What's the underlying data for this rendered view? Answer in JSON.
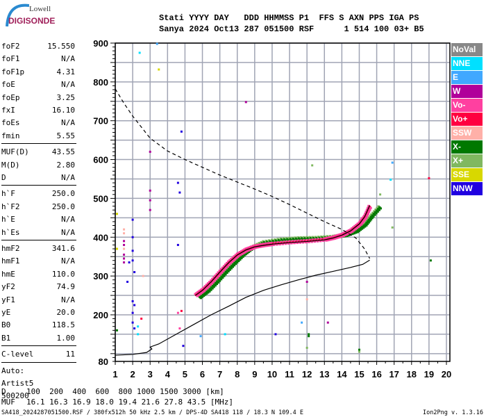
{
  "logo": {
    "line1": "Lowell",
    "line2": "DIGISONDE"
  },
  "header": {
    "line1": "Stati YYYY DAY   DDD HHMMSS P1  FFS S AXN PPS IGA PS",
    "line2": "Sanya 2024 Oct13 287 051500 RSF      1 514 100 03+ B5"
  },
  "params": [
    [
      [
        "foF2",
        "15.550"
      ],
      [
        "foF1",
        "N/A"
      ],
      [
        "foF1p",
        "4.31"
      ],
      [
        "foE",
        "N/A"
      ],
      [
        "foEp",
        "3.25"
      ],
      [
        "fxI",
        "16.10"
      ],
      [
        "foEs",
        "N/A"
      ],
      [
        "fmin",
        "5.55"
      ]
    ],
    [
      [
        "MUF(D)",
        "43.55"
      ],
      [
        "M(D)",
        "2.80"
      ],
      [
        "D",
        "N/A"
      ]
    ],
    [
      [
        "h`F",
        "250.0"
      ],
      [
        "h`F2",
        "250.0"
      ],
      [
        "h`E",
        "N/A"
      ],
      [
        "h`Es",
        "N/A"
      ]
    ],
    [
      [
        "hmF2",
        "341.6"
      ],
      [
        "hmF1",
        "N/A"
      ],
      [
        "hmE",
        "110.0"
      ],
      [
        "yF2",
        "74.9"
      ],
      [
        "yF1",
        "N/A"
      ],
      [
        "yE",
        "20.0"
      ],
      [
        "B0",
        "118.5"
      ],
      [
        "B1",
        "1.00"
      ]
    ],
    [
      [
        "C-level",
        "11"
      ]
    ]
  ],
  "auto": [
    "Auto:",
    "Artist5",
    "500200"
  ],
  "muf_table": {
    "d_label": "D",
    "d_values": "100  200  400  600  800 1000 1500 3000 [km]",
    "muf_label": "MUF",
    "muf_values": "16.1 16.3 16.9 18.0 19.4 21.6 27.8 43.5 [MHz]"
  },
  "footer": {
    "left": "SA418_2024287051500.RSF / 380fx512h 50 kHz 2.5 km / DPS-4D SA418 118 / 18.3 N 109.4 E",
    "right": "Ion2Png v. 1.3.16"
  },
  "legend": [
    {
      "label": "NoVal",
      "color": "#888888"
    },
    {
      "label": "NNE",
      "color": "#00e0ff"
    },
    {
      "label": "E",
      "color": "#40a8ff"
    },
    {
      "label": "W",
      "color": "#b0009a"
    },
    {
      "label": "Vo-",
      "color": "#ff40a0"
    },
    {
      "label": "Vo+",
      "color": "#ff0040"
    },
    {
      "label": "SSW",
      "color": "#ffb0a8"
    },
    {
      "label": "X-",
      "color": "#007800"
    },
    {
      "label": "X+",
      "color": "#80b860"
    },
    {
      "label": "SSE",
      "color": "#d8d800"
    },
    {
      "label": "NNW",
      "color": "#2000e0"
    }
  ],
  "chart_data": {
    "type": "scatter",
    "xlim": [
      1,
      20
    ],
    "ylim": [
      80,
      900
    ],
    "x_ticks": [
      1,
      2,
      3,
      4,
      5,
      6,
      7,
      8,
      9,
      10,
      11,
      12,
      13,
      14,
      15,
      16,
      17,
      18,
      19,
      20
    ],
    "y_ticks": [
      80,
      200,
      300,
      400,
      500,
      600,
      700,
      800,
      900
    ],
    "grid": true,
    "legend_placement": "right",
    "o_trace": [
      [
        5.6,
        250
      ],
      [
        6,
        263
      ],
      [
        6.5,
        285
      ],
      [
        7,
        310
      ],
      [
        7.5,
        334
      ],
      [
        8,
        354
      ],
      [
        8.5,
        367
      ],
      [
        9,
        375
      ],
      [
        9.5,
        379
      ],
      [
        10,
        382
      ],
      [
        11,
        386
      ],
      [
        12,
        389
      ],
      [
        13,
        393
      ],
      [
        13.5,
        398
      ],
      [
        14,
        405
      ],
      [
        14.5,
        416
      ],
      [
        15,
        434
      ],
      [
        15.3,
        452
      ],
      [
        15.6,
        482
      ]
    ],
    "x_trace": [
      [
        5.8,
        245
      ],
      [
        6.3,
        262
      ],
      [
        6.8,
        285
      ],
      [
        7.3,
        310
      ],
      [
        7.8,
        333
      ],
      [
        8.3,
        355
      ],
      [
        8.8,
        372
      ],
      [
        9.5,
        386
      ],
      [
        10.5,
        393
      ],
      [
        11.5,
        396
      ],
      [
        12.5,
        397
      ],
      [
        13.5,
        400
      ],
      [
        14.2,
        405
      ],
      [
        14.8,
        415
      ],
      [
        15.3,
        432
      ],
      [
        15.7,
        455
      ],
      [
        16.2,
        480
      ]
    ],
    "profile": [
      [
        1.0,
        96
      ],
      [
        2.0,
        98
      ],
      [
        2.8,
        103
      ],
      [
        3.1,
        112
      ],
      [
        3.0,
        117
      ],
      [
        3.5,
        125
      ],
      [
        4.5,
        150
      ],
      [
        5.5,
        175
      ],
      [
        6.5,
        200
      ],
      [
        7.5,
        222
      ],
      [
        8.5,
        245
      ],
      [
        9.5,
        263
      ],
      [
        10.5,
        277
      ],
      [
        11.5,
        290
      ],
      [
        12.5,
        302
      ],
      [
        13.5,
        312
      ],
      [
        14.5,
        322
      ],
      [
        15.2,
        330
      ],
      [
        15.6,
        341
      ]
    ],
    "extrapolation": [
      [
        1,
        782
      ],
      [
        1.5,
        745
      ],
      [
        2,
        712
      ],
      [
        3,
        655
      ],
      [
        4,
        622
      ],
      [
        5,
        600
      ],
      [
        6,
        580
      ],
      [
        7,
        560
      ],
      [
        8,
        542
      ],
      [
        9,
        524
      ],
      [
        10,
        505
      ],
      [
        11,
        484
      ],
      [
        12,
        462
      ],
      [
        13,
        440
      ],
      [
        14,
        420
      ],
      [
        14.8,
        398
      ],
      [
        15.3,
        370
      ],
      [
        15.6,
        345
      ]
    ],
    "echoes": [
      [
        2.4,
        875,
        "NNE"
      ],
      [
        3.4,
        898,
        "E"
      ],
      [
        3.5,
        832,
        "SSE"
      ],
      [
        8.5,
        748,
        "W"
      ],
      [
        4.8,
        672,
        "NNW"
      ],
      [
        3.0,
        620,
        "W"
      ],
      [
        4.6,
        540,
        "NNW"
      ],
      [
        4.7,
        515,
        "NNW"
      ],
      [
        3.0,
        520,
        "W"
      ],
      [
        3.0,
        495,
        "W"
      ],
      [
        3.0,
        470,
        "W"
      ],
      [
        12.3,
        585,
        "X+"
      ],
      [
        16.9,
        592,
        "E"
      ],
      [
        16.8,
        548,
        "NNE"
      ],
      [
        16.2,
        510,
        "X+"
      ],
      [
        19,
        552,
        "Vo+"
      ],
      [
        16.9,
        425,
        "X+"
      ],
      [
        19.1,
        340,
        "X-"
      ],
      [
        12.0,
        285,
        "W"
      ],
      [
        12.0,
        240,
        "SSW"
      ],
      [
        12.1,
        150,
        "X-"
      ],
      [
        12.1,
        145,
        "X-"
      ],
      [
        12.0,
        115,
        "X+"
      ],
      [
        15,
        110,
        "X-"
      ],
      [
        15,
        105,
        "X+"
      ],
      [
        10.2,
        150,
        "NNW"
      ],
      [
        13.2,
        180,
        "W"
      ],
      [
        11.7,
        180,
        "E"
      ],
      [
        7.3,
        150,
        "NNE"
      ],
      [
        5.9,
        145,
        "E"
      ],
      [
        4.9,
        120,
        "NNW"
      ],
      [
        4.7,
        165,
        "Vo-"
      ],
      [
        4.6,
        205,
        "Vo-"
      ],
      [
        4.8,
        210,
        "Vo+"
      ],
      [
        4.6,
        380,
        "NNW"
      ],
      [
        1.1,
        160,
        "X-"
      ],
      [
        1.5,
        420,
        "SSW"
      ],
      [
        1.5,
        410,
        "SSW"
      ],
      [
        1.5,
        390,
        "W"
      ],
      [
        1.5,
        380,
        "W"
      ],
      [
        1.5,
        370,
        "SSW"
      ],
      [
        1.5,
        355,
        "W"
      ],
      [
        1.5,
        345,
        "W"
      ],
      [
        1.5,
        335,
        "W"
      ],
      [
        2.0,
        445,
        "NNW"
      ],
      [
        2.0,
        400,
        "NNW"
      ],
      [
        2.0,
        365,
        "NNW"
      ],
      [
        2.0,
        340,
        "NNW"
      ],
      [
        1.8,
        335,
        "NNW"
      ],
      [
        2.1,
        310,
        "NNW"
      ],
      [
        1.7,
        285,
        "NNW"
      ],
      [
        2.0,
        235,
        "NNW"
      ],
      [
        2.1,
        225,
        "NNW"
      ],
      [
        2.0,
        205,
        "NNW"
      ],
      [
        2.0,
        180,
        "NNW"
      ],
      [
        2.1,
        165,
        "NNW"
      ],
      [
        2.3,
        170,
        "NNE"
      ],
      [
        2.5,
        190,
        "Vo+"
      ],
      [
        2.3,
        150,
        "NNE"
      ],
      [
        2.6,
        300,
        "SSW"
      ],
      [
        1.1,
        460,
        "SSE"
      ],
      [
        1.1,
        370,
        "SSE"
      ]
    ]
  }
}
